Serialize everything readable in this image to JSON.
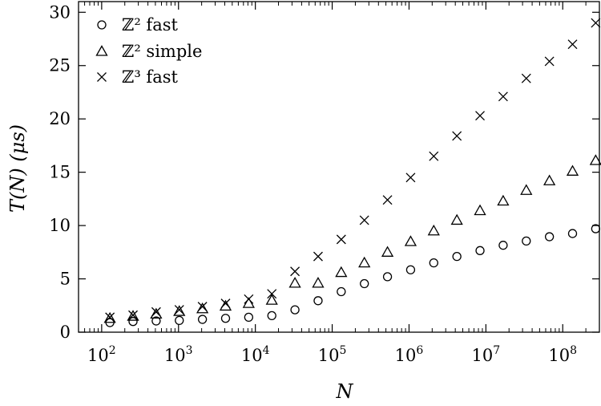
{
  "chart_data": {
    "type": "scatter",
    "xlabel": "N",
    "ylabel": "T(N) (μs)",
    "xscale": "log",
    "xlim": [
      50,
      300000000
    ],
    "ylim": [
      0,
      31
    ],
    "xticks": [
      {
        "value": 100,
        "base": "10",
        "exp": "2"
      },
      {
        "value": 1000,
        "base": "10",
        "exp": "3"
      },
      {
        "value": 10000,
        "base": "10",
        "exp": "4"
      },
      {
        "value": 100000,
        "base": "10",
        "exp": "5"
      },
      {
        "value": 1000000,
        "base": "10",
        "exp": "6"
      },
      {
        "value": 10000000,
        "base": "10",
        "exp": "7"
      },
      {
        "value": 100000000,
        "base": "10",
        "exp": "8"
      }
    ],
    "yticks": [
      0,
      5,
      10,
      15,
      20,
      25,
      30
    ],
    "grid": false,
    "legend_position": "top-left",
    "x": [
      128,
      256,
      512,
      1024,
      2048,
      4096,
      8192,
      16384,
      32768,
      65536,
      131072,
      262144,
      524288,
      1048576,
      2097152,
      4194304,
      8388608,
      16777216,
      33554432,
      67108864,
      134217728,
      268435456
    ],
    "series": [
      {
        "name": "ℤ² fast",
        "marker": "circle",
        "values": [
          0.9,
          1.0,
          1.05,
          1.1,
          1.2,
          1.3,
          1.4,
          1.55,
          2.1,
          2.95,
          3.8,
          4.55,
          5.2,
          5.85,
          6.5,
          7.1,
          7.65,
          8.15,
          8.55,
          8.95,
          9.25,
          9.7
        ]
      },
      {
        "name": "ℤ² simple",
        "marker": "triangle",
        "values": [
          1.3,
          1.5,
          1.7,
          1.95,
          2.2,
          2.45,
          2.7,
          3.0,
          4.6,
          4.6,
          5.6,
          6.5,
          7.5,
          8.5,
          9.5,
          10.5,
          11.4,
          12.3,
          13.3,
          14.2,
          15.1,
          16.1
        ]
      },
      {
        "name": "ℤ³ fast",
        "marker": "cross",
        "values": [
          1.4,
          1.6,
          1.9,
          2.1,
          2.4,
          2.7,
          3.1,
          3.6,
          5.7,
          7.1,
          8.7,
          10.5,
          12.4,
          14.5,
          16.5,
          18.4,
          20.3,
          22.1,
          23.8,
          25.4,
          27.0,
          29.0
        ]
      }
    ]
  }
}
